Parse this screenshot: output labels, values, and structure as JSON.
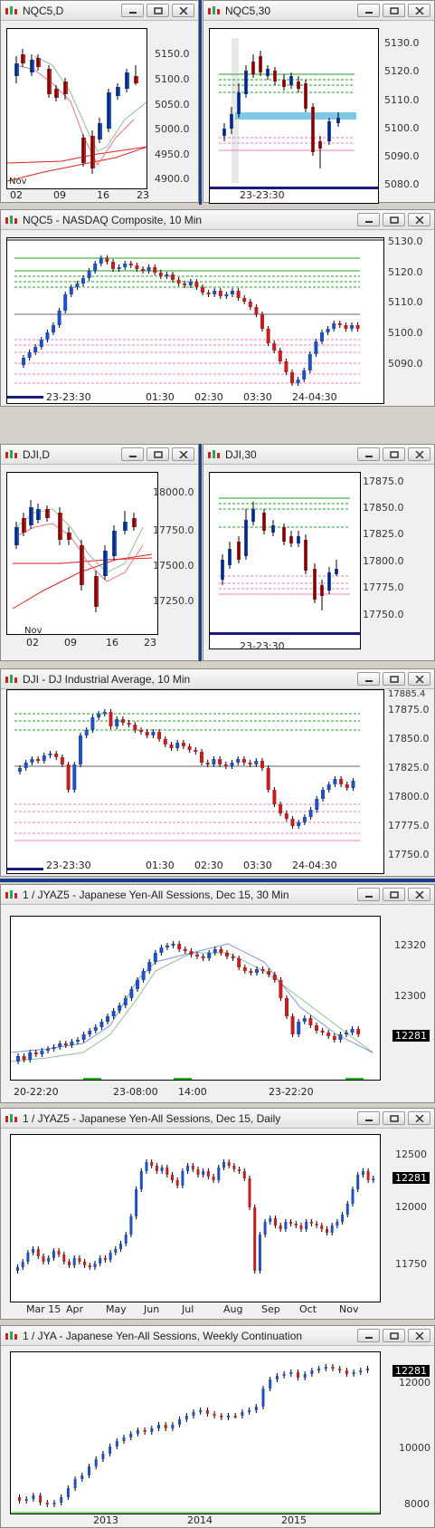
{
  "windows": {
    "nqc5_d": {
      "title": "NQC5,D",
      "y_labels": [
        "5150.0",
        "5100.0",
        "5050.0",
        "5000.0",
        "4950.0",
        "4900.0"
      ],
      "x_labels": [
        "02",
        "09",
        "16",
        "23"
      ],
      "month_label": "Nov"
    },
    "nqc5_30": {
      "title": "NQC5,30",
      "y_labels": [
        "5130.0",
        "5120.0",
        "5110.0",
        "5100.0",
        "5090.0",
        "5080.0"
      ],
      "x_labels": [
        "23-23:30"
      ]
    },
    "nqc5_10": {
      "title": "NQC5 - NASDAQ Composite, 10 Min",
      "y_labels": [
        "5130.0",
        "5120.0",
        "5110.0",
        "5100.0",
        "5090.0"
      ],
      "x_labels": [
        "23-23:30",
        "01:30",
        "02:30",
        "03:30",
        "24-04:30"
      ]
    },
    "dji_d": {
      "title": "DJI,D",
      "y_labels": [
        "18000.0",
        "17750.0",
        "17500.0",
        "17250.0"
      ],
      "x_labels": [
        "02",
        "09",
        "16",
        "23"
      ],
      "month_label": "Nov"
    },
    "dji_30": {
      "title": "DJI,30",
      "y_labels": [
        "17875.0",
        "17850.0",
        "17825.0",
        "17800.0",
        "17775.0",
        "17750.0"
      ],
      "x_labels": [
        "23-23:30"
      ]
    },
    "dji_10": {
      "title": "DJI - DJ Industrial Average, 10 Min",
      "y_labels": [
        "17875.0",
        "17850.0",
        "17825.0",
        "17800.0",
        "17775.0",
        "17750.0"
      ],
      "top_label": "17885.4",
      "x_labels": [
        "23-23:30",
        "01:30",
        "02:30",
        "03:30",
        "24-04:30"
      ]
    },
    "jya_30": {
      "title": "1 / JYAZ5 - Japanese Yen-All Sessions, Dec 15, 30 Min",
      "y_labels": [
        "12320",
        "12300"
      ],
      "price_tag": "12281",
      "x_labels": [
        "20-22:20",
        "23-08:00",
        "14:00",
        "23-22:20"
      ]
    },
    "jya_d": {
      "title": "1 / JYAZ5 - Japanese Yen-All Sessions, Dec 15, Daily",
      "y_labels": [
        "12500",
        "12000",
        "11750"
      ],
      "price_tag": "12281",
      "x_labels": [
        "Mar 15",
        "Apr",
        "May",
        "Jun",
        "Jul",
        "Aug",
        "Sep",
        "Oct",
        "Nov"
      ]
    },
    "jya_w": {
      "title": "1 / JYA - Japanese Yen-All Sessions, Weekly Continuation",
      "y_labels": [
        "12000",
        "10000",
        "8000"
      ],
      "price_tag": "12281",
      "x_labels": [
        "2013",
        "2014",
        "2015"
      ]
    }
  }
}
